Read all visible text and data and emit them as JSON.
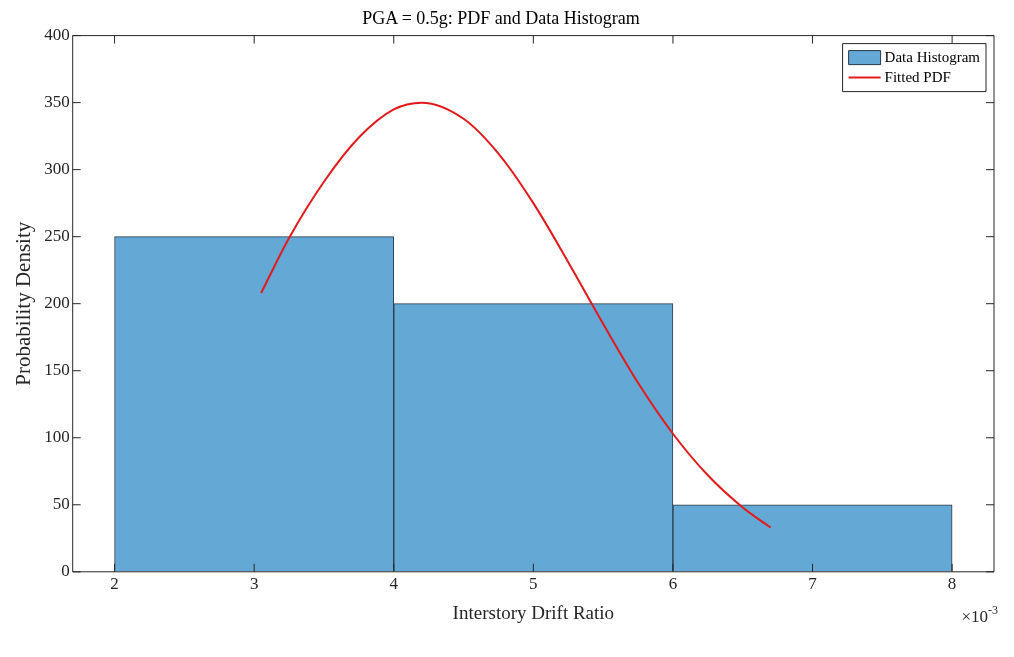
{
  "chart_data": {
    "type": "histogram",
    "title": "PGA = 0.5g: PDF and Data Histogram",
    "xlabel": "Interstory Drift Ratio",
    "ylabel": "Probability Density",
    "xlim": [
      1.7,
      8.3
    ],
    "xticks": [
      2,
      3,
      4,
      5,
      6,
      7,
      8
    ],
    "ylim": [
      0,
      400
    ],
    "yticks": [
      0,
      50,
      100,
      150,
      200,
      250,
      300,
      350,
      400
    ],
    "legend": "top right",
    "annotations": [
      "×10$^{-3}$"
    ],
    "series": [
      {
        "name": "Data Histogram",
        "color": "#64a8d6",
        "bins": [
          2,
          4,
          6,
          8
        ],
        "values": [
          250,
          200,
          50
        ]
      },
      {
        "name": "Fitted PDF",
        "type": "line",
        "color": "#e31a1c",
        "x": [
          3.05,
          3.25,
          3.5,
          3.75,
          4.0,
          4.2,
          4.5,
          4.75,
          5.0,
          5.25,
          5.5,
          5.75,
          6.0,
          6.25,
          6.5,
          6.7
        ],
        "values": [
          208,
          249,
          291,
          324,
          345,
          350,
          338,
          312,
          275,
          231,
          185,
          141,
          103,
          72,
          48,
          33
        ]
      }
    ]
  }
}
